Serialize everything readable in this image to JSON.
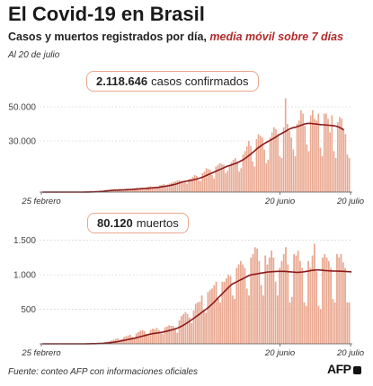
{
  "header": {
    "title": "El Covid-19 en Brasil",
    "subtitle_main": "Casos y muertos registrados por día,",
    "subtitle_highlight": "media móvil sobre 7 días",
    "date_note": "Al 20 de julio"
  },
  "callouts": {
    "cases_value": "2.118.646",
    "cases_label": "casos confirmados",
    "deaths_value": "80.120",
    "deaths_label": "muertos"
  },
  "footer": {
    "source": "Fuente: conteo AFP con informaciones oficiales",
    "logo": "AFP"
  },
  "colors": {
    "bar": "#e9a891",
    "line": "#8b1a1a",
    "axis": "#555555",
    "grid": "#cccccc",
    "accent": "#b22a2a"
  },
  "chart_data": [
    {
      "type": "bar",
      "name": "cases",
      "x_start_label": "25 febrero",
      "x_end_label": "20 julio",
      "x_tick_labels": [
        "25 febrero",
        "20 junio",
        "20 julio"
      ],
      "ylim": [
        0,
        60000
      ],
      "y_ticks": [
        30000,
        50000
      ],
      "y_tick_labels": [
        "30.000",
        "50.000"
      ],
      "values": [
        0,
        0,
        0,
        0,
        0,
        0,
        0,
        0,
        0,
        0,
        0,
        0,
        0,
        1,
        2,
        3,
        5,
        8,
        10,
        15,
        25,
        50,
        80,
        100,
        150,
        200,
        300,
        350,
        400,
        450,
        550,
        700,
        1000,
        1100,
        1200,
        1000,
        1200,
        1300,
        1000,
        900,
        1900,
        1500,
        1600,
        1800,
        2000,
        1400,
        1000,
        2200,
        2300,
        2500,
        2100,
        2000,
        1900,
        1400,
        3000,
        3200,
        3500,
        3000,
        2800,
        2500,
        2400,
        4000,
        4200,
        4800,
        3800,
        4500,
        5000,
        5500,
        6000,
        6300,
        6800,
        7000,
        6500,
        6200,
        6000,
        5000,
        7500,
        8000,
        9000,
        10000,
        9500,
        7000,
        6500,
        11000,
        12000,
        14000,
        13500,
        13000,
        10000,
        8000,
        15000,
        16000,
        17000,
        16500,
        16000,
        11000,
        12500,
        16000,
        17500,
        19000,
        20000,
        18000,
        12000,
        14000,
        22000,
        24000,
        27000,
        30000,
        27000,
        18000,
        15000,
        31000,
        34000,
        33000,
        32000,
        25000,
        17000,
        19000,
        32000,
        35000,
        38000,
        37000,
        34000,
        21000,
        20000,
        38000,
        55000,
        40000,
        36000,
        32000,
        25000,
        21000,
        40000,
        42000,
        48000,
        46000,
        39000,
        28000,
        24000,
        45000,
        48000,
        43000,
        42000,
        46000,
        26000,
        21000,
        46000,
        46000,
        43000,
        35000,
        45000,
        24000,
        20000,
        41000,
        44000,
        43000,
        37000,
        34000,
        22000,
        20000
      ],
      "moving_average": [
        0,
        0,
        0,
        0,
        0,
        0,
        0,
        0,
        0,
        0,
        0,
        0,
        0,
        0,
        1,
        2,
        3,
        4,
        6,
        9,
        14,
        21,
        30,
        43,
        63,
        93,
        130,
        175,
        225,
        282,
        353,
        435,
        545,
        667,
        800,
        900,
        1000,
        1100,
        1150,
        1150,
        1200,
        1250,
        1300,
        1350,
        1400,
        1450,
        1500,
        1600,
        1700,
        1800,
        1900,
        2000,
        2050,
        2050,
        2100,
        2200,
        2350,
        2500,
        2600,
        2700,
        2800,
        2950,
        3100,
        3300,
        3500,
        3700,
        3900,
        4100,
        4400,
        4700,
        5000,
        5400,
        5800,
        6100,
        6300,
        6500,
        6700,
        6900,
        7100,
        7400,
        7700,
        8000,
        8400,
        8800,
        9300,
        9800,
        10300,
        10800,
        11300,
        11800,
        12300,
        12800,
        13300,
        13800,
        14300,
        14800,
        15300,
        15600,
        16000,
        16400,
        16800,
        17200,
        17800,
        18400,
        19000,
        19800,
        20600,
        21500,
        22400,
        23300,
        24300,
        25300,
        26200,
        27000,
        27800,
        28500,
        29200,
        29800,
        30400,
        31000,
        31700,
        32400,
        33200,
        33900,
        34500,
        35100,
        35700,
        36400,
        37000,
        37500,
        37800,
        38000,
        38400,
        38800,
        39200,
        39600,
        40000,
        40200,
        40300,
        40300,
        40100,
        40000,
        39900,
        39700,
        39600,
        39500,
        39400,
        39300,
        39200,
        39100,
        39000,
        38900,
        38700,
        38300,
        37800,
        37200,
        36500
      ]
    },
    {
      "type": "bar",
      "name": "deaths",
      "x_start_label": "25 febrero",
      "x_end_label": "20 julio",
      "x_tick_labels": [
        "25 febrero",
        "20 junio",
        "20 julio"
      ],
      "ylim": [
        0,
        1600
      ],
      "y_ticks": [
        500,
        1000,
        1500
      ],
      "y_tick_labels": [
        "500",
        "1.000",
        "1.500"
      ],
      "values": [
        0,
        0,
        0,
        0,
        0,
        0,
        0,
        0,
        0,
        0,
        0,
        0,
        0,
        0,
        0,
        0,
        0,
        0,
        0,
        0,
        0,
        1,
        2,
        3,
        3,
        4,
        6,
        10,
        12,
        15,
        20,
        25,
        30,
        40,
        50,
        60,
        70,
        80,
        60,
        70,
        100,
        110,
        120,
        130,
        100,
        90,
        150,
        170,
        190,
        200,
        180,
        140,
        130,
        200,
        220,
        210,
        230,
        200,
        150,
        140,
        240,
        250,
        270,
        260,
        260,
        220,
        160,
        340,
        400,
        430,
        460,
        430,
        380,
        300,
        480,
        580,
        600,
        610,
        700,
        500,
        450,
        750,
        780,
        800,
        850,
        900,
        650,
        600,
        900,
        900,
        950,
        1000,
        980,
        700,
        650,
        1100,
        1150,
        1200,
        1150,
        1100,
        800,
        700,
        1250,
        1300,
        1400,
        1380,
        1200,
        850,
        700,
        1280,
        1150,
        1250,
        1350,
        1250,
        900,
        700,
        1100,
        1200,
        1300,
        1400,
        1150,
        600,
        680,
        1300,
        1280,
        1350,
        1200,
        1100,
        600,
        550,
        1200,
        1100,
        1280,
        1450,
        1050,
        550,
        500,
        1250,
        1300,
        1250,
        1200,
        1100,
        650,
        600,
        1300,
        1250,
        1300,
        1180,
        1100,
        600,
        600
      ],
      "moving_average": [
        0,
        0,
        0,
        0,
        0,
        0,
        0,
        0,
        0,
        0,
        0,
        0,
        0,
        0,
        0,
        0,
        0,
        0,
        0,
        0,
        0,
        0,
        1,
        1,
        2,
        2,
        3,
        4,
        5,
        7,
        8,
        10,
        13,
        16,
        20,
        24,
        28,
        33,
        39,
        45,
        51,
        57,
        63,
        69,
        75,
        81,
        88,
        96,
        104,
        112,
        120,
        128,
        136,
        142,
        148,
        152,
        156,
        160,
        165,
        170,
        178,
        185,
        193,
        200,
        208,
        218,
        228,
        240,
        255,
        272,
        290,
        310,
        330,
        350,
        370,
        392,
        414,
        436,
        458,
        480,
        502,
        525,
        550,
        578,
        608,
        640,
        670,
        700,
        730,
        760,
        790,
        820,
        850,
        870,
        885,
        900,
        915,
        930,
        945,
        960,
        975,
        990,
        1000,
        1005,
        1010,
        1015,
        1020,
        1025,
        1030,
        1035,
        1040,
        1042,
        1044,
        1046,
        1048,
        1050,
        1050,
        1050,
        1050,
        1048,
        1045,
        1043,
        1040,
        1038,
        1035,
        1035,
        1038,
        1040,
        1045,
        1050,
        1055,
        1060,
        1065,
        1068,
        1070,
        1070,
        1068,
        1065,
        1062,
        1060,
        1058,
        1056,
        1055,
        1054,
        1053,
        1052,
        1051,
        1050,
        1048,
        1046,
        1044,
        1042
      ]
    }
  ]
}
